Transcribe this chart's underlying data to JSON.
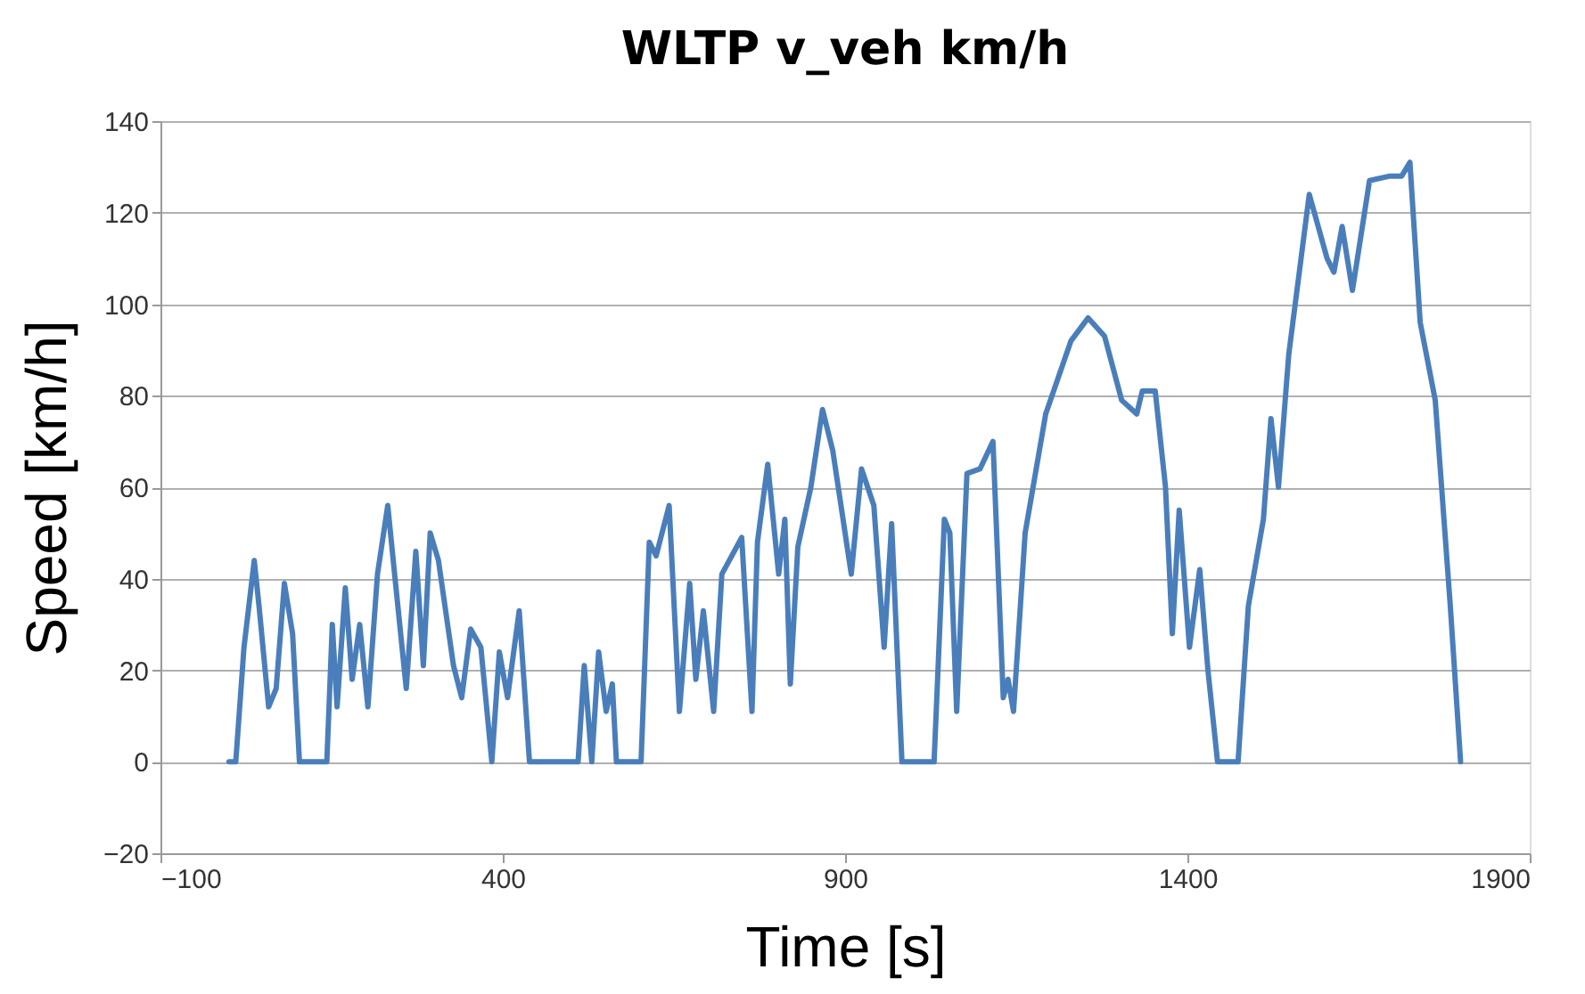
{
  "chart_data": {
    "type": "line",
    "title": "WLTP v_veh km/h",
    "xlabel": "Time [s]",
    "ylabel": "Speed [km/h]",
    "x": [
      0,
      10,
      22,
      37,
      44,
      58,
      69,
      81,
      93,
      103,
      143,
      151,
      158,
      170,
      180,
      191,
      203,
      217,
      232,
      242,
      259,
      273,
      284,
      294,
      306,
      328,
      340,
      353,
      368,
      384,
      395,
      407,
      424,
      439,
      510,
      519,
      530,
      540,
      551,
      560,
      566,
      602,
      614,
      624,
      643,
      658,
      673,
      682,
      693,
      708,
      720,
      749,
      764,
      772,
      787,
      803,
      812,
      820,
      831,
      850,
      867,
      882,
      909,
      924,
      942,
      957,
      968,
      983,
      1030,
      1045,
      1053,
      1063,
      1078,
      1097,
      1116,
      1131,
      1138,
      1146,
      1163,
      1193,
      1230,
      1255,
      1279,
      1304,
      1326,
      1334,
      1353,
      1368,
      1378,
      1388,
      1403,
      1418,
      1430,
      1444,
      1474,
      1489,
      1511,
      1522,
      1533,
      1548,
      1578,
      1604,
      1614,
      1626,
      1641,
      1666,
      1696,
      1713,
      1725,
      1740,
      1762,
      1784,
      1799
    ],
    "series": [
      {
        "color": "#4a7ebb",
        "values": [
          0,
          0,
          25,
          44,
          34,
          12,
          16,
          39,
          28,
          0,
          0,
          30,
          12,
          38,
          18,
          30,
          12,
          41,
          56,
          41,
          16,
          46,
          21,
          50,
          44,
          21,
          14,
          29,
          25,
          0,
          24,
          14,
          33,
          0,
          0,
          21,
          0,
          24,
          11,
          17,
          0,
          0,
          48,
          45,
          56,
          11,
          39,
          18,
          33,
          11,
          41,
          49,
          11,
          48,
          65,
          41,
          53,
          17,
          47,
          60,
          77,
          68,
          41,
          64,
          56,
          25,
          52,
          0,
          0,
          53,
          50,
          11,
          63,
          64,
          70,
          14,
          18,
          11,
          50,
          76,
          92,
          97,
          93,
          79,
          76,
          81,
          81,
          60,
          28,
          55,
          25,
          42,
          20,
          0,
          0,
          34,
          53,
          75,
          60,
          89,
          124,
          110,
          107,
          117,
          103,
          127,
          128,
          128,
          131,
          96,
          79,
          34,
          0
        ]
      }
    ],
    "xlim": [
      -100,
      1900
    ],
    "xticks": [
      -100,
      400,
      900,
      1400,
      1900
    ],
    "ylim": [
      -20,
      140
    ],
    "yticks": [
      -20,
      0,
      20,
      40,
      60,
      80,
      100,
      120,
      140
    ],
    "grid": "y",
    "marker": "none",
    "line_style": "solid"
  }
}
